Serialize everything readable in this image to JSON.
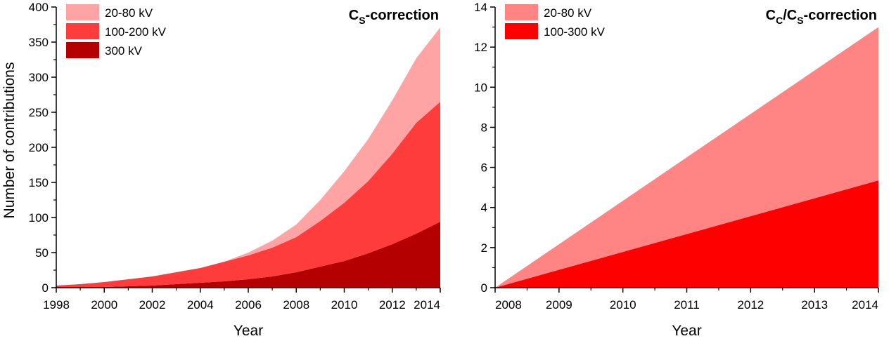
{
  "colors": {
    "light": "#ffa4a4",
    "mid": "#ff3c3c",
    "dark": "#b40000",
    "right_light": "#ff8484",
    "right_dark": "#ff0000"
  },
  "chart_data": [
    {
      "type": "area",
      "stacked": true,
      "title": "CS-correction",
      "title_parts": {
        "main": "C",
        "sub": "S",
        "suffix": "-correction"
      },
      "xlabel": "Year",
      "ylabel": "Number of contributions",
      "xlim": [
        1998,
        2014
      ],
      "ylim": [
        0,
        400
      ],
      "xticks": [
        1998,
        2000,
        2002,
        2004,
        2006,
        2008,
        2010,
        2012,
        2014
      ],
      "yticks": [
        0,
        50,
        100,
        150,
        200,
        250,
        300,
        350,
        400
      ],
      "legend_position": "top-left",
      "x": [
        1998,
        1999,
        2000,
        2001,
        2002,
        2003,
        2004,
        2005,
        2006,
        2007,
        2008,
        2009,
        2010,
        2011,
        2012,
        2013,
        2014
      ],
      "series": [
        {
          "name": "300 kV",
          "color_key": "dark",
          "values": [
            0,
            0,
            1,
            2,
            3,
            5,
            7,
            9,
            12,
            16,
            22,
            30,
            38,
            49,
            62,
            77,
            94
          ]
        },
        {
          "name": "100-200 kV",
          "color_key": "mid",
          "values": [
            3,
            5,
            7,
            10,
            13,
            17,
            21,
            28,
            34,
            41,
            50,
            65,
            83,
            103,
            129,
            158,
            171
          ]
        },
        {
          "name": "20-80 kV",
          "color_key": "light",
          "values": [
            0,
            0,
            0,
            0,
            0,
            0,
            0,
            0,
            4,
            10,
            18,
            30,
            45,
            60,
            76,
            92,
            106
          ]
        }
      ],
      "legend": [
        {
          "label": "20-80 kV",
          "color_key": "light"
        },
        {
          "label": "100-200 kV",
          "color_key": "mid"
        },
        {
          "label": "300 kV",
          "color_key": "dark"
        }
      ]
    },
    {
      "type": "area",
      "stacked": true,
      "title": "CC/CS-correction",
      "title_parts": {
        "p1": "C",
        "s1": "C",
        "p2": "/C",
        "s2": "S",
        "suffix": "-correction"
      },
      "xlabel": "Year",
      "ylabel": "",
      "xlim": [
        2008,
        2014
      ],
      "ylim": [
        0,
        14
      ],
      "xticks": [
        2008,
        2009,
        2010,
        2011,
        2012,
        2013,
        2014
      ],
      "yticks": [
        0,
        2,
        4,
        6,
        8,
        10,
        12,
        14
      ],
      "legend_position": "top-left",
      "x": [
        2008,
        2014
      ],
      "series": [
        {
          "name": "100-300 kV",
          "color_key": "right_dark",
          "values": [
            0,
            5.35
          ]
        },
        {
          "name": "20-80 kV",
          "color_key": "right_light",
          "values": [
            0,
            7.65
          ]
        }
      ],
      "legend": [
        {
          "label": "20-80 kV",
          "color_key": "right_light"
        },
        {
          "label": "100-300 kV",
          "color_key": "right_dark"
        }
      ]
    }
  ]
}
